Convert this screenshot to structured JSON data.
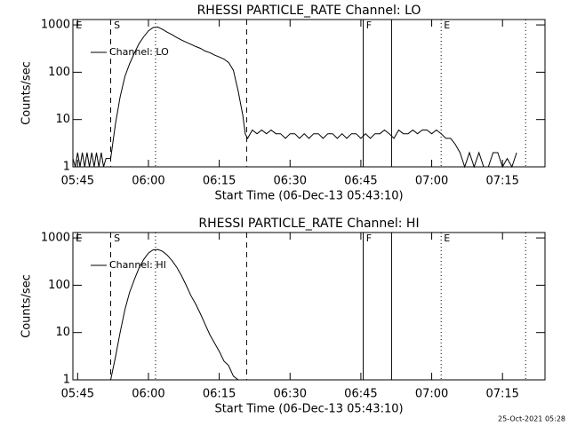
{
  "chart_data": [
    {
      "type": "line",
      "title": "RHESSI PARTICLE_RATE Channel: LO",
      "x_label": "Start Time (06-Dec-13 05:43:10)",
      "y_label": "Counts/sec",
      "log_y": true,
      "xlim": [
        344,
        444
      ],
      "ylim": [
        1,
        1300
      ],
      "xticks": [
        {
          "value": 345,
          "label": "05:45"
        },
        {
          "value": 360,
          "label": "06:00"
        },
        {
          "value": 375,
          "label": "06:15"
        },
        {
          "value": 390,
          "label": "06:30"
        },
        {
          "value": 405,
          "label": "06:45"
        },
        {
          "value": 420,
          "label": "07:00"
        },
        {
          "value": 435,
          "label": "07:15"
        }
      ],
      "yticks": [
        1,
        10,
        100,
        1000
      ],
      "vlines": [
        {
          "x": 352,
          "style": "dashed"
        },
        {
          "x": 361.5,
          "style": "dotted"
        },
        {
          "x": 380.8,
          "style": "dashed"
        },
        {
          "x": 405.5,
          "style": "solid"
        },
        {
          "x": 411.5,
          "style": "solid"
        },
        {
          "x": 422,
          "style": "dotted"
        },
        {
          "x": 439.9,
          "style": "dotted"
        }
      ],
      "event_labels": [
        {
          "x": 344.4,
          "text": "E"
        },
        {
          "x": 352.5,
          "text": "S"
        },
        {
          "x": 405.9,
          "text": "F"
        },
        {
          "x": 422.4,
          "text": "E"
        }
      ],
      "x": [
        344,
        344.5,
        345,
        345.5,
        346,
        346.5,
        347,
        347.5,
        348,
        348.5,
        349,
        349.5,
        350,
        350.5,
        351,
        352,
        353,
        354,
        355,
        356,
        357,
        358,
        359,
        360,
        361,
        362,
        363,
        364,
        365,
        366,
        367,
        368,
        369,
        370,
        371,
        372,
        373,
        374,
        375,
        376,
        377,
        378,
        379,
        380,
        380.5,
        381,
        382,
        383,
        384,
        385,
        386,
        387,
        388,
        389,
        390,
        391,
        392,
        393,
        394,
        395,
        396,
        397,
        398,
        399,
        400,
        401,
        402,
        403,
        404,
        405,
        406,
        407,
        408,
        409,
        410,
        411,
        412,
        413,
        414,
        415,
        416,
        417,
        418,
        419,
        420,
        421,
        422,
        423,
        424,
        425,
        426,
        427,
        428,
        429,
        430,
        431,
        432,
        433,
        434,
        435,
        436,
        437,
        438
      ],
      "series": [
        {
          "name": "Channel: LO",
          "color": "#000000",
          "values": [
            1.5,
            1,
            2,
            1,
            2,
            1,
            2,
            1,
            2,
            1,
            2,
            1,
            2,
            1,
            1.5,
            1.5,
            8,
            30,
            80,
            150,
            250,
            400,
            560,
            750,
            880,
            900,
            800,
            700,
            620,
            540,
            480,
            430,
            390,
            350,
            320,
            280,
            260,
            230,
            210,
            190,
            160,
            110,
            40,
            12,
            5,
            4,
            6,
            5,
            6,
            5,
            6,
            5,
            5,
            4,
            5,
            5,
            4,
            5,
            4,
            5,
            5,
            4,
            5,
            5,
            4,
            5,
            4,
            5,
            5,
            4,
            5,
            4,
            5,
            5,
            6,
            5,
            4,
            6,
            5,
            5,
            6,
            5,
            6,
            6,
            5,
            6,
            5,
            4,
            4,
            3,
            2,
            1,
            2,
            1,
            2,
            1,
            1,
            2,
            2,
            1,
            1.5,
            1,
            2
          ]
        }
      ]
    },
    {
      "type": "line",
      "title": "RHESSI PARTICLE_RATE Channel: HI",
      "x_label": "Start Time (06-Dec-13 05:43:10)",
      "y_label": "Counts/sec",
      "log_y": true,
      "xlim": [
        344,
        444
      ],
      "ylim": [
        1,
        1300
      ],
      "xticks": [
        {
          "value": 345,
          "label": "05:45"
        },
        {
          "value": 360,
          "label": "06:00"
        },
        {
          "value": 375,
          "label": "06:15"
        },
        {
          "value": 390,
          "label": "06:30"
        },
        {
          "value": 405,
          "label": "06:45"
        },
        {
          "value": 420,
          "label": "07:00"
        },
        {
          "value": 435,
          "label": "07:15"
        }
      ],
      "yticks": [
        1,
        10,
        100,
        1000
      ],
      "vlines": [
        {
          "x": 352,
          "style": "dashed"
        },
        {
          "x": 361.5,
          "style": "dotted"
        },
        {
          "x": 380.8,
          "style": "dashed"
        },
        {
          "x": 405.5,
          "style": "solid"
        },
        {
          "x": 411.5,
          "style": "solid"
        },
        {
          "x": 422,
          "style": "dotted"
        },
        {
          "x": 439.9,
          "style": "dotted"
        }
      ],
      "event_labels": [
        {
          "x": 344.4,
          "text": "E"
        },
        {
          "x": 352.5,
          "text": "S"
        },
        {
          "x": 405.9,
          "text": "F"
        },
        {
          "x": 422.4,
          "text": "E"
        }
      ],
      "x": [
        352,
        353,
        354,
        355,
        356,
        357,
        358,
        359,
        360,
        361,
        362,
        363,
        364,
        365,
        366,
        367,
        368,
        369,
        370,
        371,
        372,
        373,
        374,
        375,
        376,
        377,
        378,
        379
      ],
      "series": [
        {
          "name": "Channel: HI",
          "color": "#000000",
          "values": [
            1,
            3,
            10,
            30,
            70,
            130,
            230,
            350,
            480,
            560,
            570,
            520,
            430,
            330,
            240,
            160,
            100,
            60,
            40,
            25,
            15,
            9,
            6,
            4,
            2.5,
            2,
            1.2,
            1
          ]
        }
      ]
    }
  ],
  "footer": "25-Oct-2021 05:28"
}
